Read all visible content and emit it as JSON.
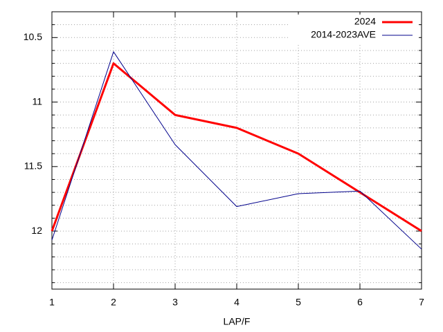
{
  "chart_data": {
    "type": "line",
    "x": [
      1,
      2,
      3,
      4,
      5,
      6,
      7
    ],
    "xlim": [
      1,
      7
    ],
    "xticks": [
      1,
      2,
      3,
      4,
      5,
      6,
      7
    ],
    "ylim": [
      12.45,
      10.3
    ],
    "yticks": [
      10.5,
      11,
      11.5,
      12
    ],
    "yminorticks": [
      10.4,
      10.6,
      10.7,
      10.8,
      10.9,
      11.1,
      11.2,
      11.3,
      11.4,
      11.6,
      11.7,
      11.8,
      11.9,
      12.1,
      12.2,
      12.3,
      12.4
    ],
    "y_reversed": true,
    "grid": true,
    "legend": "top-right",
    "xlabel": "LAP/F",
    "series": [
      {
        "name": "2024",
        "color": "#ff0000",
        "width": 3,
        "values": [
          12.0,
          10.7,
          11.1,
          11.2,
          11.4,
          11.7,
          12.0
        ]
      },
      {
        "name": "2014-2023AVE",
        "color": "#00008b",
        "width": 1,
        "values": [
          12.07,
          10.61,
          11.33,
          11.81,
          11.71,
          11.69,
          12.14
        ]
      }
    ]
  }
}
